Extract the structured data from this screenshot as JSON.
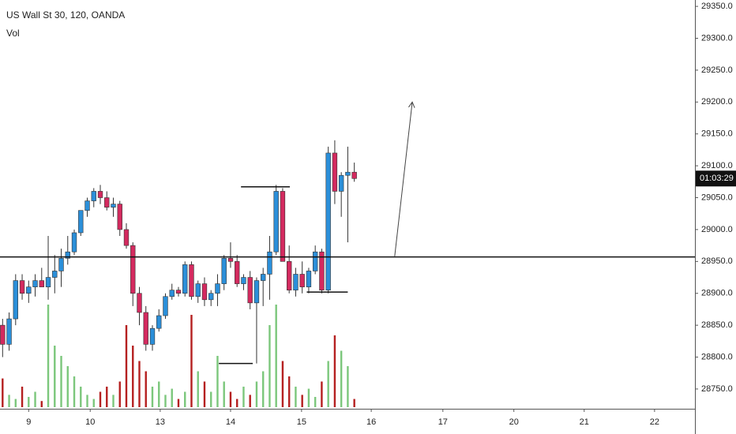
{
  "chart_data": {
    "type": "candlestick",
    "title": "US Wall St 30, 120, OANDA",
    "indicator": "Vol",
    "countdown": "01:03:29",
    "x": [
      0,
      1,
      2,
      3,
      4,
      5,
      6,
      7,
      8,
      9,
      10,
      11,
      12,
      13,
      14,
      15,
      16,
      17,
      18,
      19,
      20,
      21,
      22,
      23,
      24,
      25,
      26,
      27,
      28,
      29,
      30,
      31,
      32,
      33,
      34,
      35,
      36,
      37,
      38,
      39,
      40,
      41,
      42,
      43,
      44,
      45,
      46,
      47,
      48,
      49,
      50,
      51,
      52,
      53,
      54
    ],
    "ohlc": [
      [
        28850,
        28860,
        28800,
        28820
      ],
      [
        28820,
        28870,
        28810,
        28860
      ],
      [
        28860,
        28930,
        28850,
        28920
      ],
      [
        28920,
        28930,
        28890,
        28900
      ],
      [
        28900,
        28920,
        28885,
        28910
      ],
      [
        28910,
        28930,
        28895,
        28920
      ],
      [
        28920,
        28940,
        28910,
        28910
      ],
      [
        28910,
        28990,
        28890,
        28925
      ],
      [
        28925,
        28960,
        28900,
        28935
      ],
      [
        28935,
        28970,
        28910,
        28955
      ],
      [
        28955,
        28990,
        28945,
        28965
      ],
      [
        28965,
        29000,
        28960,
        28995
      ],
      [
        28995,
        29030,
        28990,
        29030
      ],
      [
        29030,
        29050,
        29020,
        29045
      ],
      [
        29045,
        29065,
        29035,
        29060
      ],
      [
        29060,
        29070,
        29040,
        29050
      ],
      [
        29050,
        29060,
        29030,
        29035
      ],
      [
        29035,
        29050,
        29020,
        29040
      ],
      [
        29040,
        29045,
        28990,
        29000
      ],
      [
        29000,
        29010,
        28970,
        28975
      ],
      [
        28975,
        28980,
        28880,
        28900
      ],
      [
        28900,
        28910,
        28850,
        28870
      ],
      [
        28870,
        28880,
        28810,
        28820
      ],
      [
        28820,
        28850,
        28810,
        28845
      ],
      [
        28845,
        28875,
        28840,
        28865
      ],
      [
        28865,
        28900,
        28860,
        28895
      ],
      [
        28895,
        28915,
        28890,
        28905
      ],
      [
        28905,
        28910,
        28895,
        28900
      ],
      [
        28900,
        28950,
        28895,
        28945
      ],
      [
        28945,
        28950,
        28890,
        28895
      ],
      [
        28895,
        28920,
        28885,
        28915
      ],
      [
        28915,
        28925,
        28880,
        28890
      ],
      [
        28890,
        28905,
        28880,
        28900
      ],
      [
        28900,
        28930,
        28880,
        28915
      ],
      [
        28915,
        28960,
        28905,
        28955
      ],
      [
        28955,
        28980,
        28940,
        28950
      ],
      [
        28950,
        28960,
        28910,
        28915
      ],
      [
        28915,
        28930,
        28905,
        28925
      ],
      [
        28925,
        28935,
        28875,
        28885
      ],
      [
        28885,
        28925,
        28790,
        28920
      ],
      [
        28920,
        28940,
        28880,
        28930
      ],
      [
        28930,
        28990,
        28890,
        28965
      ],
      [
        28965,
        29070,
        28960,
        29060
      ],
      [
        29060,
        29065,
        28950,
        28950
      ],
      [
        28950,
        28975,
        28900,
        28905
      ],
      [
        28905,
        28940,
        28895,
        28930
      ],
      [
        28930,
        28950,
        28900,
        28910
      ],
      [
        28910,
        28940,
        28900,
        28935
      ],
      [
        28935,
        28975,
        28930,
        28965
      ],
      [
        28965,
        28970,
        28900,
        28905
      ],
      [
        28905,
        29130,
        28900,
        29120
      ],
      [
        29120,
        29140,
        29040,
        29060
      ],
      [
        29060,
        29090,
        29020,
        29085
      ],
      [
        29085,
        29130,
        28980,
        29090
      ],
      [
        29090,
        29105,
        29075,
        29080
      ]
    ],
    "volume": [
      28,
      12,
      8,
      20,
      10,
      15,
      6,
      100,
      60,
      50,
      40,
      30,
      20,
      12,
      8,
      15,
      20,
      12,
      25,
      80,
      60,
      45,
      35,
      20,
      25,
      12,
      18,
      8,
      15,
      90,
      35,
      25,
      15,
      50,
      25,
      15,
      8,
      20,
      12,
      25,
      35,
      80,
      100,
      45,
      30,
      20,
      12,
      18,
      10,
      25,
      45,
      70,
      55,
      40,
      8
    ],
    "volume_lim": [
      0,
      100
    ],
    "up_color": "#2b8fd9",
    "down_color": "#d42a5f",
    "volume_up_color": "#7cc77c",
    "volume_down_color": "#b52020",
    "xlim": [
      -0.4,
      106.3
    ],
    "ylim": [
      28719,
      29360
    ],
    "xticks": [
      {
        "value": 4,
        "label": "9"
      },
      {
        "value": 13.45,
        "label": "10"
      },
      {
        "value": 24.2,
        "label": "13"
      },
      {
        "value": 35,
        "label": "14"
      },
      {
        "value": 45.9,
        "label": "15"
      },
      {
        "value": 56.6,
        "label": "16"
      },
      {
        "value": 67.6,
        "label": "17"
      },
      {
        "value": 78.5,
        "label": "20"
      },
      {
        "value": 89.3,
        "label": "21"
      },
      {
        "value": 100.1,
        "label": "22"
      }
    ],
    "yticks": [
      {
        "value": 28750,
        "label": "28750.0"
      },
      {
        "value": 28800,
        "label": "28800.0"
      },
      {
        "value": 28850,
        "label": "28850.0"
      },
      {
        "value": 28900,
        "label": "28900.0"
      },
      {
        "value": 28950,
        "label": "28950.0"
      },
      {
        "value": 29000,
        "label": "29000.0"
      },
      {
        "value": 29050,
        "label": "29050.0"
      },
      {
        "value": 29100,
        "label": "29100.0"
      },
      {
        "value": 29150,
        "label": "29150.0"
      },
      {
        "value": 29200,
        "label": "29200.0"
      },
      {
        "value": 29250,
        "label": "29250.0"
      },
      {
        "value": 29300,
        "label": "29300.0"
      },
      {
        "value": 29350,
        "label": "29350.0"
      }
    ],
    "hline": 28957,
    "segments": [
      {
        "x": [
          36.6,
          44.1
        ],
        "y": [
          29067,
          29067
        ]
      },
      {
        "x": [
          33.2,
          38.4
        ],
        "y": [
          28790,
          28790
        ]
      },
      {
        "x": [
          46.7,
          53.0
        ],
        "y": [
          28902,
          28902
        ]
      }
    ],
    "arrow": {
      "x": [
        60.2,
        62.9
      ],
      "y": [
        28958,
        29200
      ]
    }
  }
}
